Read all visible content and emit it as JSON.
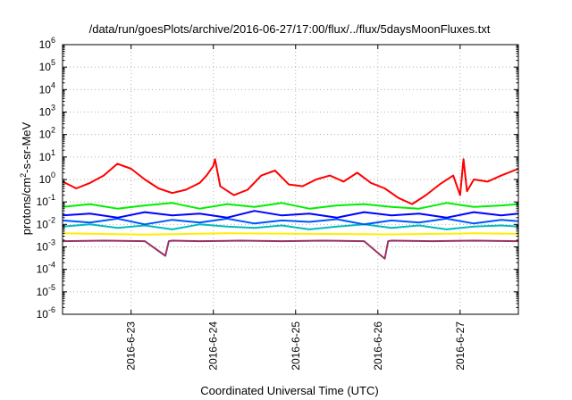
{
  "chart_data": {
    "type": "line",
    "title": "/data/run/goesPlots/archive/2016-06-27/17:00/flux/../flux/5daysMoonFluxes.txt",
    "xlabel": "Coordinated Universal Time (UTC)",
    "ylabel": {
      "before_superscript": "protons/cm",
      "superscript": "2",
      "after_superscript": "-s-sr-MeV"
    },
    "y_scale": "log",
    "ylim": [
      1e-06,
      1000000.0
    ],
    "y_ticks": [
      {
        "base": "10",
        "exp": "-6"
      },
      {
        "base": "10",
        "exp": "-5"
      },
      {
        "base": "10",
        "exp": "-4"
      },
      {
        "base": "10",
        "exp": "-3"
      },
      {
        "base": "10",
        "exp": "-2"
      },
      {
        "base": "10",
        "exp": "-1"
      },
      {
        "base": "10",
        "exp": "0"
      },
      {
        "base": "10",
        "exp": "1"
      },
      {
        "base": "10",
        "exp": "2"
      },
      {
        "base": "10",
        "exp": "3"
      },
      {
        "base": "10",
        "exp": "4"
      },
      {
        "base": "10",
        "exp": "5"
      },
      {
        "base": "10",
        "exp": "6"
      }
    ],
    "xlim": [
      "2016-06-22T04:00",
      "2016-06-27T17:00"
    ],
    "x_ticks": [
      {
        "label": "2016-6-23",
        "at": "2016-06-23T00:00"
      },
      {
        "label": "2016-6-24",
        "at": "2016-06-24T00:00"
      },
      {
        "label": "2016-6-25",
        "at": "2016-06-25T00:00"
      },
      {
        "label": "2016-6-26",
        "at": "2016-06-26T00:00"
      },
      {
        "label": "2016-6-27",
        "at": "2016-06-27T00:00"
      }
    ],
    "grid": true,
    "legend": "none",
    "series": [
      {
        "color": "#ff0000",
        "x": [
          "2016-06-22T04:00",
          "2016-06-22T08:00",
          "2016-06-22T12:00",
          "2016-06-22T16:00",
          "2016-06-22T20:00",
          "2016-06-23T00:00",
          "2016-06-23T04:00",
          "2016-06-23T08:00",
          "2016-06-23T12:00",
          "2016-06-23T16:00",
          "2016-06-23T20:00",
          "2016-06-23T22:00",
          "2016-06-24T00:00",
          "2016-06-24T00:30",
          "2016-06-24T02:00",
          "2016-06-24T06:00",
          "2016-06-24T10:00",
          "2016-06-24T14:00",
          "2016-06-24T18:00",
          "2016-06-24T22:00",
          "2016-06-25T02:00",
          "2016-06-25T06:00",
          "2016-06-25T10:00",
          "2016-06-25T14:00",
          "2016-06-25T18:00",
          "2016-06-25T22:00",
          "2016-06-26T02:00",
          "2016-06-26T06:00",
          "2016-06-26T10:00",
          "2016-06-26T14:00",
          "2016-06-26T18:00",
          "2016-06-26T22:00",
          "2016-06-27T00:00",
          "2016-06-27T01:00",
          "2016-06-27T02:00",
          "2016-06-27T04:00",
          "2016-06-27T08:00",
          "2016-06-27T12:00",
          "2016-06-27T17:00"
        ],
        "y": [
          0.8,
          0.4,
          0.7,
          1.5,
          5,
          3,
          1,
          0.4,
          0.25,
          0.35,
          0.7,
          1.5,
          4,
          8,
          0.5,
          0.2,
          0.35,
          1.5,
          2.5,
          0.6,
          0.5,
          1,
          1.5,
          0.8,
          2,
          0.7,
          0.4,
          0.15,
          0.08,
          0.2,
          0.6,
          1.5,
          0.2,
          8,
          0.3,
          1,
          0.8,
          1.5,
          3
        ]
      },
      {
        "color": "#00ee00",
        "x": [
          "2016-06-22T04:00",
          "2016-06-22T12:00",
          "2016-06-22T20:00",
          "2016-06-23T04:00",
          "2016-06-23T12:00",
          "2016-06-23T20:00",
          "2016-06-24T04:00",
          "2016-06-24T12:00",
          "2016-06-24T20:00",
          "2016-06-25T04:00",
          "2016-06-25T12:00",
          "2016-06-25T20:00",
          "2016-06-26T04:00",
          "2016-06-26T12:00",
          "2016-06-26T20:00",
          "2016-06-27T04:00",
          "2016-06-27T12:00",
          "2016-06-27T17:00"
        ],
        "y": [
          0.06,
          0.08,
          0.05,
          0.07,
          0.09,
          0.05,
          0.08,
          0.06,
          0.09,
          0.05,
          0.07,
          0.08,
          0.06,
          0.05,
          0.09,
          0.06,
          0.07,
          0.08
        ]
      },
      {
        "color": "#0000ff",
        "x": [
          "2016-06-22T04:00",
          "2016-06-22T12:00",
          "2016-06-22T20:00",
          "2016-06-23T04:00",
          "2016-06-23T12:00",
          "2016-06-23T20:00",
          "2016-06-24T04:00",
          "2016-06-24T12:00",
          "2016-06-24T20:00",
          "2016-06-25T04:00",
          "2016-06-25T12:00",
          "2016-06-25T20:00",
          "2016-06-26T04:00",
          "2016-06-26T12:00",
          "2016-06-26T20:00",
          "2016-06-27T04:00",
          "2016-06-27T12:00",
          "2016-06-27T17:00"
        ],
        "y": [
          0.025,
          0.03,
          0.02,
          0.035,
          0.025,
          0.03,
          0.02,
          0.04,
          0.025,
          0.03,
          0.02,
          0.035,
          0.025,
          0.03,
          0.02,
          0.035,
          0.025,
          0.03
        ]
      },
      {
        "color": "#0055ff",
        "x": [
          "2016-06-22T04:00",
          "2016-06-22T12:00",
          "2016-06-22T20:00",
          "2016-06-23T04:00",
          "2016-06-23T12:00",
          "2016-06-23T20:00",
          "2016-06-24T04:00",
          "2016-06-24T12:00",
          "2016-06-24T20:00",
          "2016-06-25T04:00",
          "2016-06-25T12:00",
          "2016-06-25T20:00",
          "2016-06-26T04:00",
          "2016-06-26T12:00",
          "2016-06-26T20:00",
          "2016-06-27T04:00",
          "2016-06-27T12:00",
          "2016-06-27T17:00"
        ],
        "y": [
          0.015,
          0.012,
          0.018,
          0.01,
          0.016,
          0.012,
          0.018,
          0.011,
          0.015,
          0.013,
          0.017,
          0.01,
          0.015,
          0.012,
          0.018,
          0.011,
          0.016,
          0.014
        ]
      },
      {
        "color": "#00bbbb",
        "x": [
          "2016-06-22T04:00",
          "2016-06-22T12:00",
          "2016-06-22T20:00",
          "2016-06-23T04:00",
          "2016-06-23T12:00",
          "2016-06-23T20:00",
          "2016-06-24T04:00",
          "2016-06-24T12:00",
          "2016-06-24T20:00",
          "2016-06-25T04:00",
          "2016-06-25T12:00",
          "2016-06-25T20:00",
          "2016-06-26T04:00",
          "2016-06-26T12:00",
          "2016-06-26T20:00",
          "2016-06-27T04:00",
          "2016-06-27T12:00",
          "2016-06-27T17:00"
        ],
        "y": [
          0.008,
          0.01,
          0.007,
          0.009,
          0.006,
          0.01,
          0.008,
          0.007,
          0.009,
          0.006,
          0.008,
          0.01,
          0.007,
          0.009,
          0.006,
          0.008,
          0.009,
          0.008
        ]
      },
      {
        "color": "#ffee00",
        "x": [
          "2016-06-22T04:00",
          "2016-06-23T04:00",
          "2016-06-24T04:00",
          "2016-06-25T04:00",
          "2016-06-26T04:00",
          "2016-06-27T04:00",
          "2016-06-27T17:00"
        ],
        "y": [
          0.004,
          0.0035,
          0.004,
          0.0038,
          0.0036,
          0.004,
          0.0038
        ]
      },
      {
        "color": "#993366",
        "x": [
          "2016-06-22T04:00",
          "2016-06-22T16:00",
          "2016-06-23T04:00",
          "2016-06-23T10:00",
          "2016-06-23T11:00",
          "2016-06-23T12:00",
          "2016-06-23T20:00",
          "2016-06-24T08:00",
          "2016-06-24T20:00",
          "2016-06-25T08:00",
          "2016-06-25T20:00",
          "2016-06-26T02:00",
          "2016-06-26T03:00",
          "2016-06-26T04:00",
          "2016-06-26T16:00",
          "2016-06-27T04:00",
          "2016-06-27T17:00"
        ],
        "y": [
          0.0018,
          0.0019,
          0.0018,
          0.0004,
          0.0018,
          0.0019,
          0.0018,
          0.0019,
          0.0018,
          0.0019,
          0.0018,
          0.0003,
          0.0018,
          0.0019,
          0.0018,
          0.0019,
          0.0018
        ]
      }
    ]
  }
}
